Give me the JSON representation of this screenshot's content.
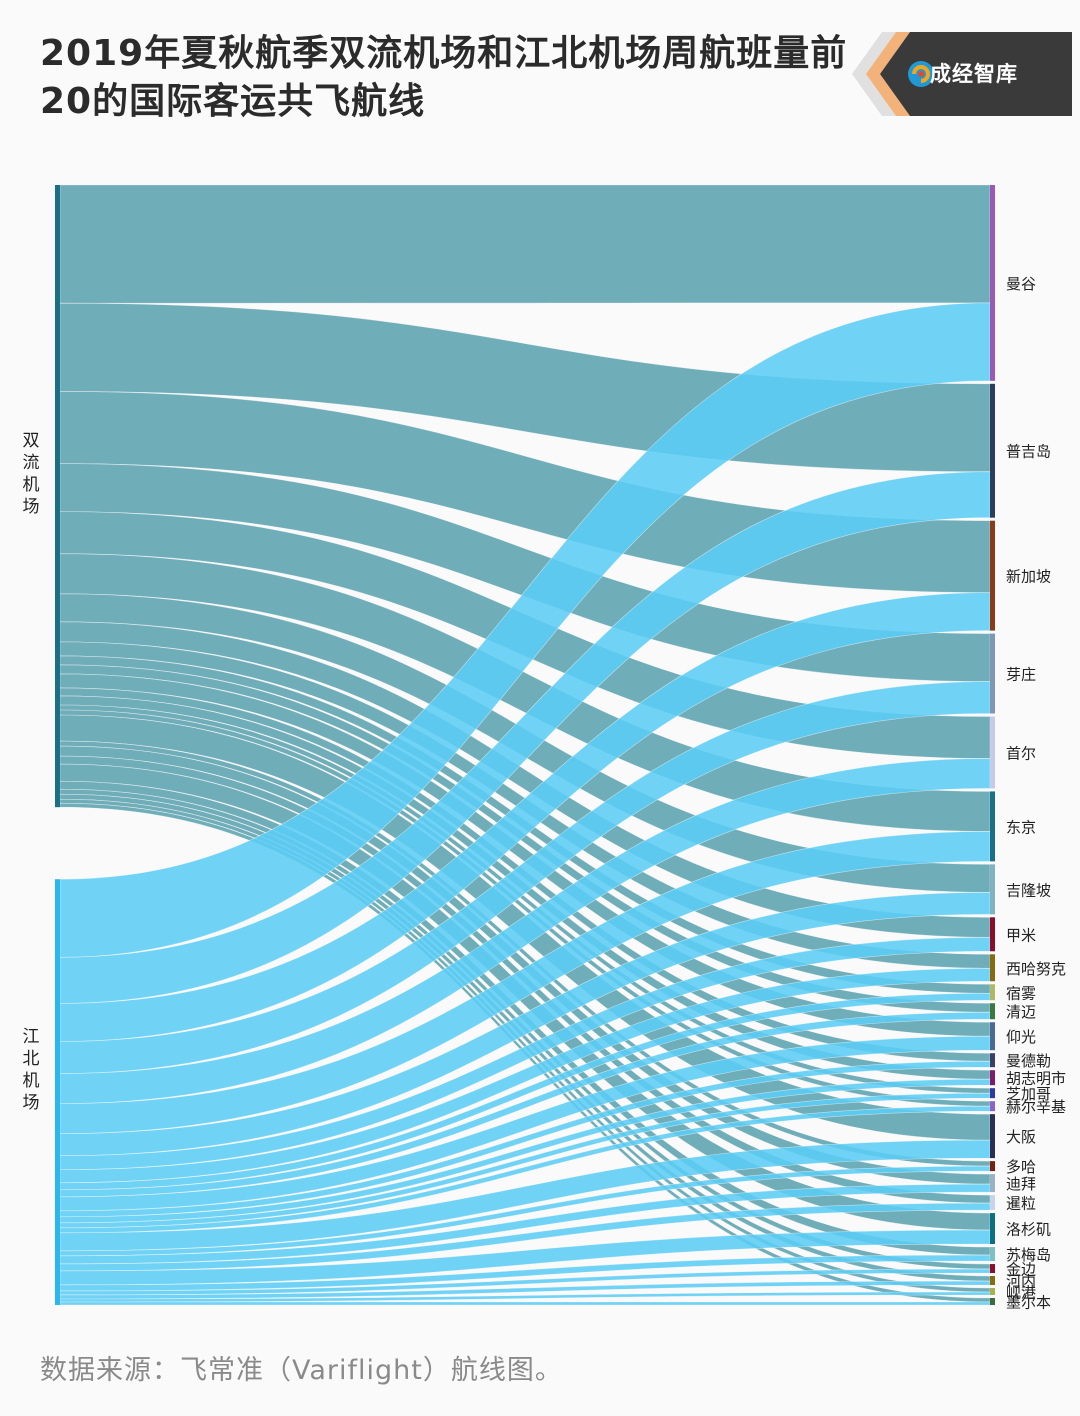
{
  "title": "2019年夏秋航季双流机场和江北机场周航班量前20的国际客运共飞航线",
  "brand": {
    "name": "成经智库",
    "logo_icon": "spiral-logo-icon"
  },
  "footer": "数据来源：飞常准（Variflight）航线图。",
  "chart_data": {
    "type": "sankey",
    "sources": [
      {
        "name": "双流机场",
        "color": "#6aaab7"
      },
      {
        "name": "江北机场",
        "color": "#5ccdf5"
      }
    ],
    "targets": [
      {
        "name": "曼谷",
        "color": "#9b59b6",
        "values": [
          118,
          78
        ]
      },
      {
        "name": "普吉岛",
        "color": "#2c3e5c",
        "values": [
          88,
          46
        ]
      },
      {
        "name": "新加坡",
        "color": "#8b3a1a",
        "values": [
          72,
          38
        ]
      },
      {
        "name": "芽庄",
        "color": "#7f97b2",
        "values": [
          48,
          32
        ]
      },
      {
        "name": "首尔",
        "color": "#c8cbe8",
        "values": [
          42,
          30
        ]
      },
      {
        "name": "东京",
        "color": "#1b6f86",
        "values": [
          40,
          30
        ]
      },
      {
        "name": "吉隆坡",
        "color": "#7fb3c0",
        "values": [
          28,
          22
        ]
      },
      {
        "name": "甲米",
        "color": "#8b0f2a",
        "values": [
          20,
          14
        ]
      },
      {
        "name": "西哈努克",
        "color": "#8a6a10",
        "values": [
          14,
          13
        ]
      },
      {
        "name": "宿雾",
        "color": "#b0b866",
        "values": [
          9,
          7
        ]
      },
      {
        "name": "清迈",
        "color": "#3b7a3e",
        "values": [
          9,
          7
        ]
      },
      {
        "name": "仰光",
        "color": "#4a6a96",
        "values": [
          14,
          14
        ]
      },
      {
        "name": "曼德勒",
        "color": "#3a3f66",
        "values": [
          8,
          6
        ]
      },
      {
        "name": "胡志明市",
        "color": "#7b1d6b",
        "values": [
          9,
          6
        ]
      },
      {
        "name": "芝加哥",
        "color": "#2f3aa0",
        "values": [
          5,
          5
        ]
      },
      {
        "name": "赫尔辛基",
        "color": "#8e63c9",
        "values": [
          5,
          5
        ]
      },
      {
        "name": "大阪",
        "color": "#2b2f55",
        "values": [
          26,
          18
        ]
      },
      {
        "name": "多哈",
        "color": "#7a1e10",
        "values": [
          5,
          5
        ]
      },
      {
        "name": "迪拜",
        "color": "#9ab0c4",
        "values": [
          10,
          8
        ]
      },
      {
        "name": "暹粒",
        "color": "#c8d4ec",
        "values": [
          8,
          7
        ]
      },
      {
        "name": "洛杉矶",
        "color": "#0c6f82",
        "values": [
          17,
          14
        ]
      },
      {
        "name": "苏梅岛",
        "color": "#7fc0c4",
        "values": [
          8,
          6
        ]
      },
      {
        "name": "金边",
        "color": "#8b0f2a",
        "values": [
          5,
          4
        ]
      },
      {
        "name": "河内",
        "color": "#8a6a10",
        "values": [
          5,
          4
        ]
      },
      {
        "name": "岘港",
        "color": "#a8b050",
        "values": [
          4,
          3
        ]
      },
      {
        "name": "墨尔本",
        "color": "#3b6a3e",
        "values": [
          4,
          3
        ]
      }
    ]
  }
}
